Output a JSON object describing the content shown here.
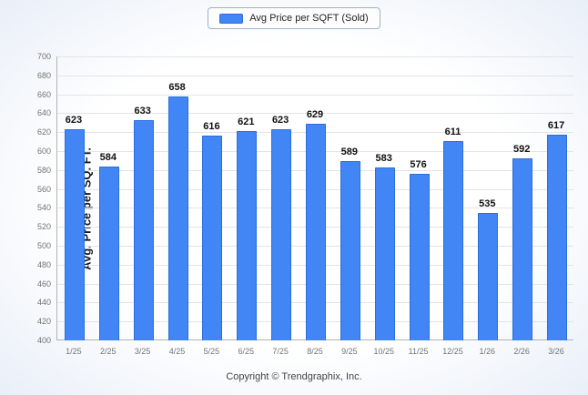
{
  "legend": {
    "label": "Avg Price per SQFT (Sold)"
  },
  "footer": "Copyright © Trendgraphix, Inc.",
  "colors": {
    "bar": "#4285f4",
    "bar_border": "#2a6fdb"
  },
  "chart_data": {
    "type": "bar",
    "title": "",
    "xlabel": "",
    "ylabel": "Avg. Price per SQ. FT.",
    "categories": [
      "1/25",
      "2/25",
      "3/25",
      "4/25",
      "5/25",
      "6/25",
      "7/25",
      "8/25",
      "9/25",
      "10/25",
      "11/25",
      "12/25",
      "1/26",
      "2/26",
      "3/26"
    ],
    "values": [
      623,
      584,
      633,
      658,
      616,
      621,
      623,
      629,
      589,
      583,
      576,
      611,
      535,
      592,
      617
    ],
    "ylim": [
      400,
      700
    ],
    "ytick_step": 20,
    "grid": true,
    "legend_position": "top",
    "legend_entries": [
      "Avg Price per SQFT (Sold)"
    ]
  }
}
